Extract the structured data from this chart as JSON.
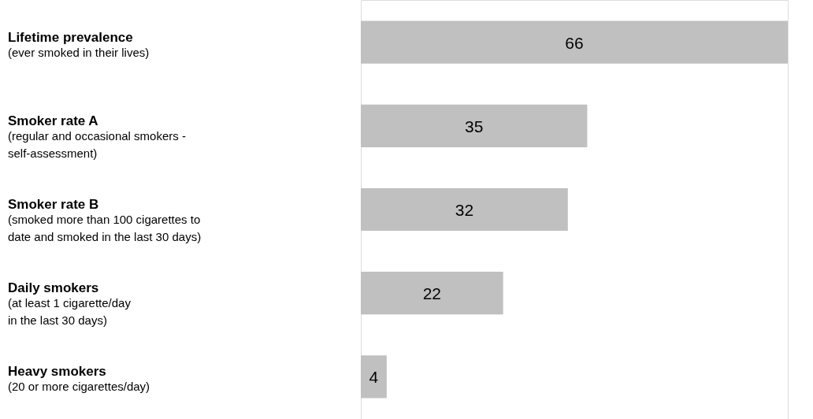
{
  "chart_data": {
    "type": "bar",
    "orientation": "horizontal",
    "data_labels": true,
    "color": "#c0c0c0",
    "categories": [
      "Lifetime prevalence\n(ever smoked in their lives)",
      "Smoker rate A\n(regular and occasional smokers -\nself-assessment)",
      "Smoker rate B\n(smoked more than 100 cigarettes to\ndate and smoked in the last 30 days)",
      "Daily smokers\n(at least 1 cigarette/day\nin the last 30 days)",
      "Heavy smokers\n(20 or more cigarettes/day)"
    ],
    "values": [
      66,
      35,
      32,
      22,
      4
    ]
  }
}
